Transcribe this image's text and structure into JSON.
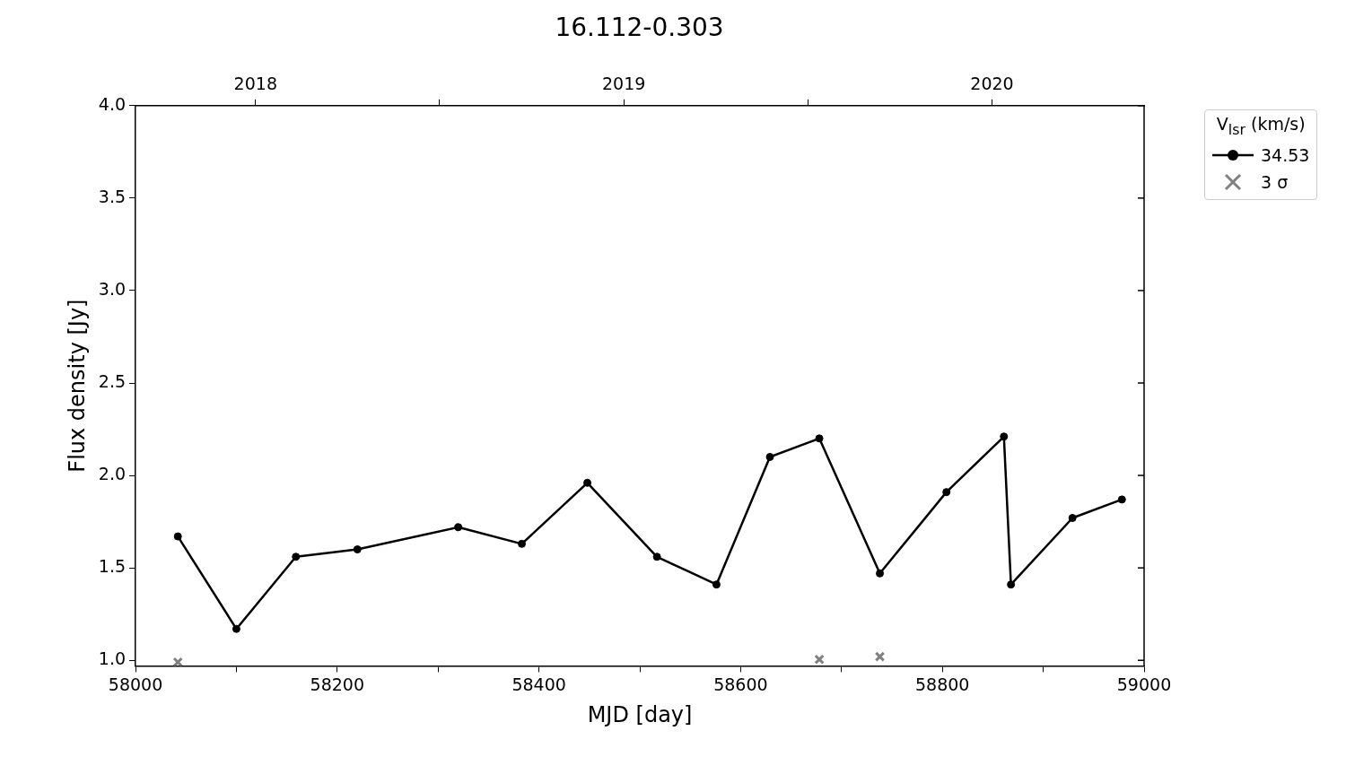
{
  "chart_data": {
    "type": "line",
    "title": "16.112-0.303",
    "xlabel": "MJD [day]",
    "ylabel": "Flux density [Jy]",
    "legend_title": "V$_{lsr}$ (km/s)",
    "legend": "top right",
    "grid": false,
    "xlim": [
      58000,
      59000
    ],
    "xticks": [
      58000,
      {
        "value": 58100,
        "label": null
      },
      58200,
      {
        "value": 58300,
        "label": null
      },
      58400,
      {
        "value": 58500,
        "label": null
      },
      58600,
      {
        "value": 58700,
        "label": null
      },
      58800,
      {
        "value": 58900,
        "label": null
      },
      59000
    ],
    "x2lim": [
      2017.674,
      2020.413
    ],
    "x2ticks": [
      2018,
      {
        "value": 2018.5,
        "label": null
      },
      2019,
      {
        "value": 2019.5,
        "label": null
      },
      2020
    ],
    "ylim": [
      0.97,
      4.0
    ],
    "yticks": [
      {
        "value": 1,
        "label": "1.0"
      },
      {
        "value": 1.5,
        "label": "1.5"
      },
      {
        "value": 2,
        "label": "2.0"
      },
      {
        "value": 2.5,
        "label": "2.5"
      },
      {
        "value": 3,
        "label": "3.0"
      },
      {
        "value": 3.5,
        "label": "3.5"
      },
      {
        "value": 4,
        "label": "4.0"
      }
    ],
    "series": [
      {
        "name": "34.53",
        "marker": "circle",
        "color": "#000000",
        "x": [
          58042,
          58100,
          58159,
          58220,
          58320,
          58383,
          58448,
          58517,
          58576,
          58629,
          58678,
          58738,
          58804,
          58861,
          58868,
          58929,
          58978
        ],
        "values": [
          1.67,
          1.17,
          1.56,
          1.6,
          1.72,
          1.63,
          1.96,
          1.56,
          1.41,
          2.1,
          2.2,
          1.47,
          1.91,
          2.21,
          1.41,
          1.77,
          1.87
        ]
      },
      {
        "name": "3 σ",
        "type": "scatter",
        "marker": "cross",
        "color": "#808080",
        "x": [
          58042,
          58678,
          58738
        ],
        "values": [
          0.99,
          1.005,
          1.02
        ]
      }
    ]
  }
}
